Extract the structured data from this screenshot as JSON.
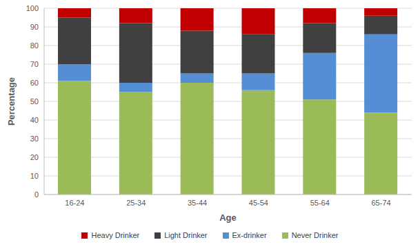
{
  "chart_data": {
    "type": "bar",
    "stacked": true,
    "xlabel": "Age",
    "ylabel": "Percentage",
    "categories": [
      "16-24",
      "25-34",
      "35-44",
      "45-54",
      "55-64",
      "65-74"
    ],
    "series": [
      {
        "name": "Never Drinker",
        "color": "#9bbb59",
        "values": [
          61,
          55,
          60,
          56,
          51,
          44
        ]
      },
      {
        "name": "Ex-drinker",
        "color": "#558ed5",
        "values": [
          9,
          5,
          5,
          9,
          25,
          42
        ]
      },
      {
        "name": "Light Drinker",
        "color": "#404040",
        "values": [
          25,
          32,
          23,
          21,
          16,
          10
        ]
      },
      {
        "name": "Heavy Drinker",
        "color": "#c00000",
        "values": [
          5,
          8,
          12,
          14,
          8,
          4
        ]
      }
    ],
    "ylim": [
      0,
      100
    ],
    "yticks": [
      0,
      10,
      20,
      30,
      40,
      50,
      60,
      70,
      80,
      90,
      100
    ],
    "grid": true,
    "legend": "bottom"
  }
}
